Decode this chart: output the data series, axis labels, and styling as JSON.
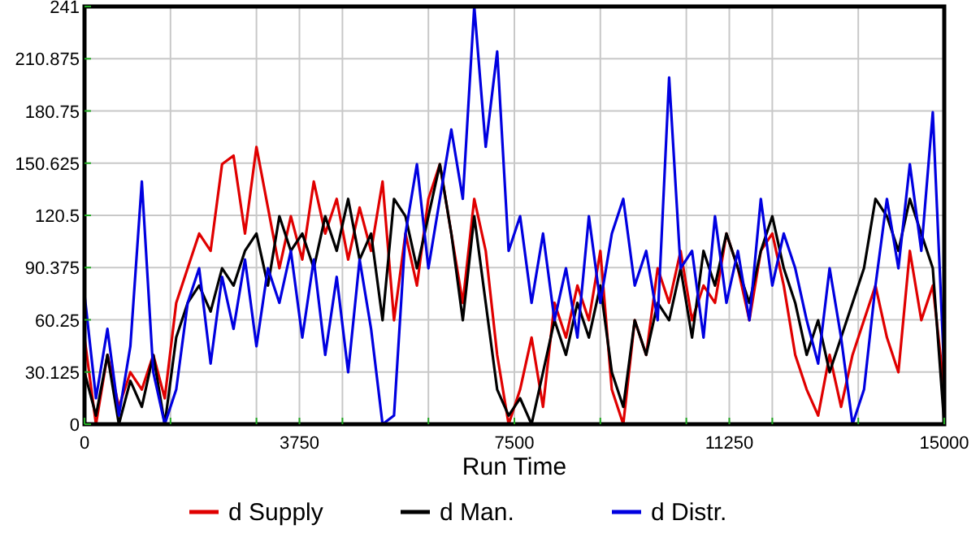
{
  "chart_data": {
    "type": "line",
    "xlabel": "Run Time",
    "grid": true,
    "legend": "bottom",
    "line_style": "solid",
    "marker": "none",
    "xlim": [
      0,
      15000
    ],
    "ylim": [
      0,
      241
    ],
    "xticks": [
      0,
      {
        "value": 1500,
        "label": null
      },
      {
        "value": 3000,
        "label": null
      },
      3750,
      {
        "value": 4500,
        "label": null
      },
      {
        "value": 6000,
        "label": null
      },
      7500,
      {
        "value": 9000,
        "label": null
      },
      {
        "value": 10500,
        "label": null
      },
      11250,
      {
        "value": 12000,
        "label": null
      },
      {
        "value": 13500,
        "label": null
      },
      15000
    ],
    "yticks": [
      0,
      30.125,
      60.25,
      90.375,
      120.5,
      150.625,
      180.75,
      210.875,
      241
    ],
    "x": [
      0,
      200,
      400,
      600,
      800,
      1000,
      1200,
      1400,
      1600,
      1800,
      2000,
      2200,
      2400,
      2600,
      2800,
      3000,
      3200,
      3400,
      3600,
      3800,
      4000,
      4200,
      4400,
      4600,
      4800,
      5000,
      5200,
      5400,
      5600,
      5800,
      6000,
      6200,
      6400,
      6600,
      6800,
      7000,
      7200,
      7400,
      7600,
      7800,
      8000,
      8200,
      8400,
      8600,
      8800,
      9000,
      9200,
      9400,
      9600,
      9800,
      10000,
      10200,
      10400,
      10600,
      10800,
      11000,
      11200,
      11400,
      11600,
      11800,
      12000,
      12200,
      12400,
      12600,
      12800,
      13000,
      13200,
      13400,
      13600,
      13800,
      14000,
      14200,
      14400,
      14600,
      14800,
      15000
    ],
    "series": [
      {
        "name": "d Supply",
        "color": "#e00000",
        "values": [
          50,
          0,
          40,
          10,
          30,
          20,
          40,
          15,
          70,
          90,
          110,
          100,
          150,
          155,
          110,
          160,
          125,
          90,
          120,
          95,
          140,
          110,
          130,
          95,
          125,
          100,
          140,
          60,
          110,
          80,
          130,
          150,
          110,
          70,
          130,
          100,
          40,
          0,
          20,
          50,
          10,
          70,
          50,
          80,
          60,
          100,
          20,
          0,
          60,
          40,
          90,
          70,
          100,
          60,
          80,
          70,
          110,
          90,
          60,
          100,
          110,
          80,
          40,
          20,
          5,
          40,
          10,
          40,
          60,
          80,
          50,
          30,
          100,
          60,
          80,
          20
        ]
      },
      {
        "name": "d Man.",
        "color": "#000000",
        "values": [
          30,
          5,
          40,
          0,
          25,
          10,
          40,
          0,
          50,
          70,
          80,
          65,
          90,
          80,
          100,
          110,
          80,
          120,
          100,
          110,
          90,
          120,
          100,
          130,
          95,
          110,
          60,
          130,
          120,
          90,
          120,
          150,
          110,
          60,
          120,
          70,
          20,
          5,
          15,
          0,
          30,
          60,
          40,
          70,
          50,
          80,
          30,
          10,
          60,
          40,
          70,
          60,
          90,
          50,
          100,
          80,
          110,
          90,
          70,
          100,
          120,
          90,
          70,
          40,
          60,
          30,
          50,
          70,
          90,
          130,
          120,
          100,
          130,
          110,
          90,
          0
        ]
      },
      {
        "name": "d Distr.",
        "color": "#0000e0",
        "values": [
          75,
          15,
          55,
          5,
          45,
          140,
          30,
          0,
          20,
          70,
          90,
          35,
          85,
          55,
          95,
          45,
          90,
          70,
          100,
          50,
          95,
          40,
          85,
          30,
          95,
          55,
          0,
          5,
          110,
          150,
          90,
          130,
          170,
          130,
          241,
          160,
          215,
          100,
          120,
          70,
          110,
          60,
          90,
          50,
          120,
          70,
          110,
          130,
          80,
          100,
          60,
          200,
          90,
          100,
          50,
          120,
          70,
          100,
          60,
          130,
          80,
          110,
          90,
          60,
          35,
          90,
          50,
          0,
          20,
          80,
          130,
          90,
          150,
          100,
          180,
          30
        ]
      }
    ]
  }
}
